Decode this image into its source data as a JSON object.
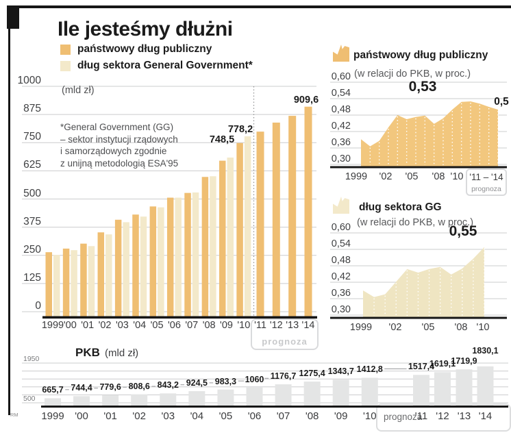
{
  "header": {
    "title": "Ile jesteśmy dłużni",
    "source": "RM"
  },
  "legend": {
    "items": [
      {
        "label": "państwowy dług publiczny",
        "color": "#efbe72"
      },
      {
        "label": "dług sektora General Government*",
        "color": "#f3e9ca"
      }
    ]
  },
  "colors": {
    "dark_bar": "#efbe72",
    "light_bar": "#f3e9ca",
    "area_orange": "#f2c77e",
    "area_beige": "#efe5c2",
    "gray_bar": "#e4e5e5",
    "grid": "#cbcccd",
    "axis": "#161616",
    "separator": "#8f9092",
    "connector": "#a0a1a3"
  },
  "chart_data": [
    {
      "id": "public-debt-bars",
      "type": "bar",
      "unit_label": "(mld zł)",
      "footnote_lines": [
        "*General Government (GG)",
        "– sektor instytucji rządowych",
        "i samorządowych zgodnie",
        "z unijną metodologią ESA'95"
      ],
      "categories": [
        "1999",
        "'00",
        "'01",
        "'02",
        "'03",
        "'04",
        "'05",
        "'06",
        "'07",
        "'08",
        "'09",
        "'10",
        "'11",
        "'12",
        "'13",
        "'14"
      ],
      "ylim": [
        0,
        1000
      ],
      "yticks": [
        1000,
        875,
        750,
        625,
        500,
        375,
        250,
        125,
        0
      ],
      "series": [
        {
          "name": "państwowy dług publiczny",
          "values": [
            264,
            280,
            302,
            352,
            408,
            431,
            467,
            506,
            527,
            598,
            670,
            748.5,
            799,
            839,
            869,
            909.6
          ]
        },
        {
          "name": "dług sektora General Government*",
          "values": [
            252,
            273,
            291,
            343,
            397,
            422,
            463,
            506,
            529,
            601,
            684,
            778.2
          ]
        }
      ],
      "annotations": [
        "748,5",
        "778,2",
        "909,6"
      ],
      "forecast": {
        "label": "prognoza",
        "years": [
          "'11",
          "'12",
          "'13",
          "'14"
        ]
      }
    },
    {
      "id": "state-debt-to-gdp",
      "type": "area",
      "title": "państwowy dług publiczny",
      "subtitle": "(w relacji do PKB, w proc.)",
      "x": [
        1999,
        2000,
        2001,
        2002,
        2003,
        2004,
        2005,
        2006,
        2007,
        2008,
        2009,
        2010,
        2011,
        2012,
        2013,
        2014
      ],
      "values": [
        0.392,
        0.366,
        0.386,
        0.435,
        0.48,
        0.465,
        0.473,
        0.478,
        0.448,
        0.468,
        0.5,
        0.528,
        0.53,
        0.522,
        0.51,
        0.5
      ],
      "ylim": [
        0.3,
        0.6
      ],
      "ytick_labels": [
        "0,60",
        "0,54",
        "0,48",
        "0,42",
        "0,36",
        "0,30"
      ],
      "xtick_labels": [
        "1999",
        "'02",
        "'05",
        "'08",
        "'10"
      ],
      "forecast_box": {
        "range_label": "'11 – '14",
        "label": "prognoza"
      },
      "annotations": [
        "0,53",
        "0,5"
      ]
    },
    {
      "id": "gg-debt-to-gdp",
      "type": "area",
      "title": "dług sektora GG",
      "subtitle": "(w relacji do PKB, w proc.)",
      "x": [
        1999,
        2000,
        2001,
        2002,
        2003,
        2004,
        2005,
        2006,
        2007,
        2008,
        2009,
        2010
      ],
      "values": [
        0.39,
        0.366,
        0.376,
        0.422,
        0.468,
        0.455,
        0.468,
        0.476,
        0.448,
        0.47,
        0.506,
        0.548
      ],
      "ylim": [
        0.3,
        0.6
      ],
      "ytick_labels": [
        "0,60",
        "0,54",
        "0,48",
        "0,42",
        "0,36",
        "0,30"
      ],
      "xtick_labels": [
        "1999",
        "'02",
        "'05",
        "'08",
        "'10"
      ],
      "annotations": [
        "0,55"
      ]
    },
    {
      "id": "pkb-bars",
      "type": "bar",
      "title": "PKB",
      "unit_label": "(mld zł)",
      "categories": [
        "1999",
        "'00",
        "'01",
        "'02",
        "'03",
        "'04",
        "'05",
        "'06",
        "'07",
        "'08",
        "'09",
        "'10",
        "'11",
        "'12",
        "'13",
        "'14"
      ],
      "values": [
        665.7,
        744.4,
        779.6,
        808.6,
        843.2,
        924.5,
        983.3,
        1060,
        1176.7,
        1275.4,
        1343.7,
        1412.8,
        1517.4,
        1619.1,
        1719.9,
        1830.1
      ],
      "value_labels": [
        "665,7",
        "744,4",
        "779,6",
        "808,6",
        "843,2",
        "924,5",
        "983,3",
        "1060",
        "1176,7",
        "1275,4",
        "1343,7",
        "1412,8",
        "1517,4",
        "1619,1",
        "1719,9",
        "1830,1"
      ],
      "ylim": [
        500,
        1950
      ],
      "ytick_labels": [
        "1950",
        "500"
      ],
      "forecast_label": "prognoza"
    }
  ]
}
